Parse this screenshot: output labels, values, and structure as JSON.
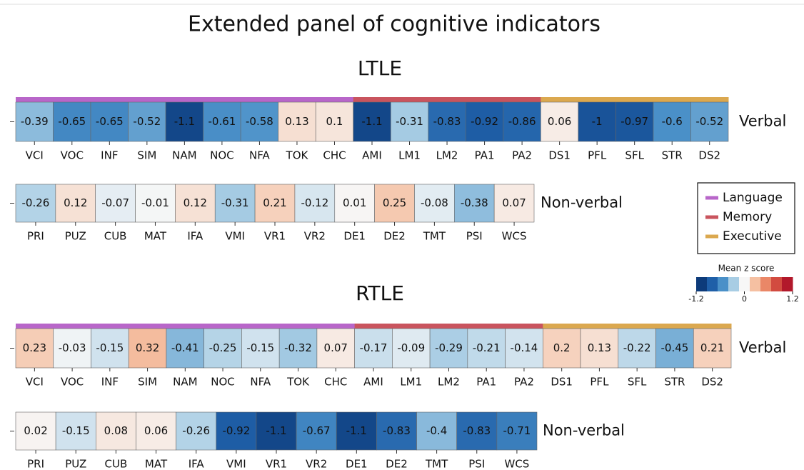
{
  "title": "Extended panel of cognitive indicators",
  "legend": [
    {
      "name": "Language",
      "color": "#b866c9"
    },
    {
      "name": "Memory",
      "color": "#c9545e"
    },
    {
      "name": "Executive",
      "color": "#dba84f"
    }
  ],
  "colorbar": {
    "title": "Mean z score",
    "lim": [
      -1.2,
      1.2
    ],
    "ticks": [
      -1.2,
      0,
      1.2
    ],
    "colors": [
      "#0d3b7a",
      "#1f5fa8",
      "#4a90c8",
      "#a8cde4",
      "#f7f7f7",
      "#f5c0a2",
      "#ea8767",
      "#d24b40",
      "#b2182b"
    ]
  },
  "chart_data": [
    {
      "type": "heatmap",
      "title": "LTLE",
      "rows": [
        {
          "name": "Verbal",
          "categories": [
            "VCI",
            "VOC",
            "INF",
            "SIM",
            "NAM",
            "NOC",
            "NFA",
            "TOK",
            "CHC",
            "AMI",
            "LM1",
            "LM2",
            "PA1",
            "PA2",
            "DS1",
            "PFL",
            "SFL",
            "STR",
            "DS2"
          ],
          "values": [
            -0.39,
            -0.65,
            -0.65,
            -0.52,
            -1.1,
            -0.61,
            -0.58,
            0.13,
            0.1,
            -1.1,
            -0.31,
            -0.83,
            -0.92,
            -0.86,
            0.06,
            -1,
            -0.97,
            -0.6,
            -0.52
          ],
          "domains": [
            "Language",
            "Language",
            "Language",
            "Language",
            "Language",
            "Language",
            "Language",
            "Language",
            "Language",
            "Memory",
            "Memory",
            "Memory",
            "Memory",
            "Memory",
            "Executive",
            "Executive",
            "Executive",
            "Executive",
            "Executive"
          ]
        },
        {
          "name": "Non-verbal",
          "categories": [
            "PRI",
            "PUZ",
            "CUB",
            "MAT",
            "IFA",
            "VMI",
            "VR1",
            "VR2",
            "DE1",
            "DE2",
            "TMT",
            "PSI",
            "WCS"
          ],
          "values": [
            -0.26,
            0.12,
            -0.07,
            -0.01,
            0.12,
            -0.31,
            0.21,
            -0.12,
            0.01,
            0.25,
            -0.08,
            -0.38,
            0.07
          ]
        }
      ]
    },
    {
      "type": "heatmap",
      "title": "RTLE",
      "rows": [
        {
          "name": "Verbal",
          "categories": [
            "VCI",
            "VOC",
            "INF",
            "SIM",
            "NAM",
            "NOC",
            "NFA",
            "TOK",
            "CHC",
            "AMI",
            "LM1",
            "LM2",
            "PA1",
            "PA2",
            "DS1",
            "PFL",
            "SFL",
            "STR",
            "DS2"
          ],
          "values": [
            0.23,
            -0.03,
            -0.15,
            0.32,
            -0.41,
            -0.25,
            -0.15,
            -0.32,
            0.07,
            -0.17,
            -0.09,
            -0.29,
            -0.21,
            -0.14,
            0.2,
            0.13,
            -0.22,
            -0.45,
            0.21
          ],
          "domains": [
            "Language",
            "Language",
            "Language",
            "Language",
            "Language",
            "Language",
            "Language",
            "Language",
            "Language",
            "Memory",
            "Memory",
            "Memory",
            "Memory",
            "Memory",
            "Executive",
            "Executive",
            "Executive",
            "Executive",
            "Executive"
          ]
        },
        {
          "name": "Non-verbal",
          "categories": [
            "PRI",
            "PUZ",
            "CUB",
            "MAT",
            "IFA",
            "VMI",
            "VR1",
            "VR2",
            "DE1",
            "DE2",
            "TMT",
            "PSI",
            "WCS"
          ],
          "values": [
            0.02,
            -0.15,
            0.08,
            0.06,
            -0.26,
            -0.92,
            -1.1,
            -0.67,
            -1.1,
            -0.83,
            -0.4,
            -0.83,
            -0.71
          ]
        }
      ]
    }
  ]
}
